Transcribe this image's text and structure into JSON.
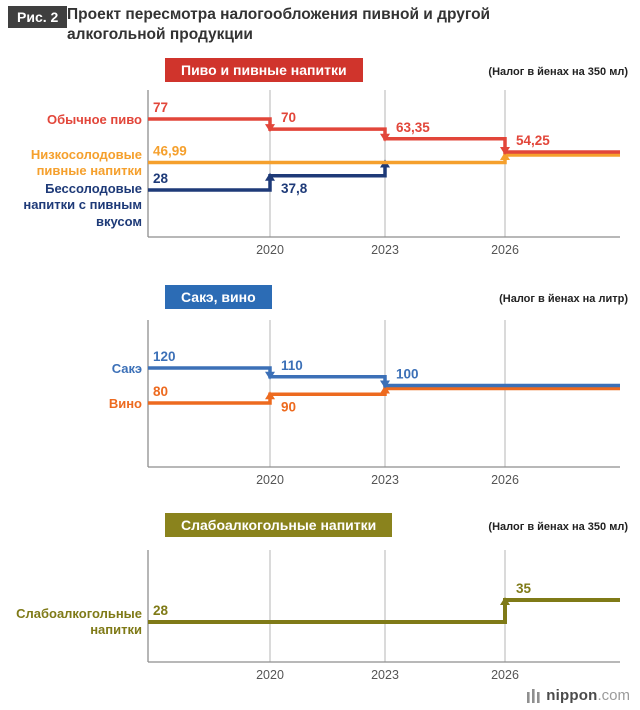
{
  "figure": {
    "tag": "Рис. 2",
    "title": "Проект пересмотра налогообложения пивной и другой алкогольной продукции"
  },
  "chart_data": [
    {
      "type": "line",
      "subtype": "step",
      "title": "Пиво и пивные напитки",
      "unit": "(Налог в йенах на 350 мл)",
      "x_ticks": [
        "2020",
        "2023",
        "2026"
      ],
      "legend_position": "left",
      "grid": "vertical",
      "series": [
        {
          "name": "Обычное пиво",
          "color": "#e2463a",
          "points": [
            {
              "x": "start",
              "v": 77,
              "label": "77"
            },
            {
              "x": "2020",
              "v": 70,
              "label": "70"
            },
            {
              "x": "2023",
              "v": 63.35,
              "label": "63,35"
            },
            {
              "x": "2026",
              "v": 54.25,
              "label": "54,25"
            }
          ],
          "end": "end"
        },
        {
          "name": "Низкосолодовые пивные напитки",
          "color": "#f5a02d",
          "points": [
            {
              "x": "start",
              "v": 46.99,
              "label": "46,99"
            },
            {
              "x": "2026",
              "v": 54.25
            }
          ],
          "end": "end"
        },
        {
          "name": "Бессолодовые напитки с пивным вкусом",
          "color": "#1e3a78",
          "points": [
            {
              "x": "start",
              "v": 28,
              "label": "28"
            },
            {
              "x": "2020",
              "v": 37.8,
              "label": "37,8",
              "label_pos": "below"
            },
            {
              "x": "2023",
              "v": 46.99
            }
          ],
          "end": "2023"
        }
      ]
    },
    {
      "type": "line",
      "subtype": "step",
      "title": "Сакэ, вино",
      "unit": "(Налог в йенах на литр)",
      "x_ticks": [
        "2020",
        "2023",
        "2026"
      ],
      "legend_position": "left",
      "grid": "vertical",
      "series": [
        {
          "name": "Сакэ",
          "color": "#3c70b7",
          "points": [
            {
              "x": "start",
              "v": 120,
              "label": "120"
            },
            {
              "x": "2020",
              "v": 110,
              "label": "110"
            },
            {
              "x": "2023",
              "v": 100,
              "label": "100"
            }
          ],
          "end": "end"
        },
        {
          "name": "Вино",
          "color": "#ed6a1f",
          "points": [
            {
              "x": "start",
              "v": 80,
              "label": "80"
            },
            {
              "x": "2020",
              "v": 90,
              "label": "90",
              "label_pos": "below"
            },
            {
              "x": "2023",
              "v": 100
            }
          ],
          "end": "end"
        }
      ]
    },
    {
      "type": "line",
      "subtype": "step",
      "title": "Слабоалкогольные напитки",
      "unit": "(Налог в йенах на 350 мл)",
      "x_ticks": [
        "2020",
        "2023",
        "2026"
      ],
      "legend_position": "left",
      "grid": "vertical",
      "series": [
        {
          "name": "Слабоалкогольные напитки",
          "color": "#7f7a17",
          "points": [
            {
              "x": "start",
              "v": 28,
              "label": "28"
            },
            {
              "x": "2026",
              "v": 35,
              "label": "35"
            }
          ],
          "end": "end"
        }
      ]
    }
  ],
  "colors": {
    "beer_badge_bg": "#d0342c",
    "sake_badge_bg": "#2c6cb5",
    "lowalc_badge_bg": "#8a831d",
    "grid": "#b5b5b5",
    "axis": "#8e8e8e",
    "tick_text": "#555555"
  },
  "logo": {
    "name": "nippon",
    "tld": ".com"
  }
}
